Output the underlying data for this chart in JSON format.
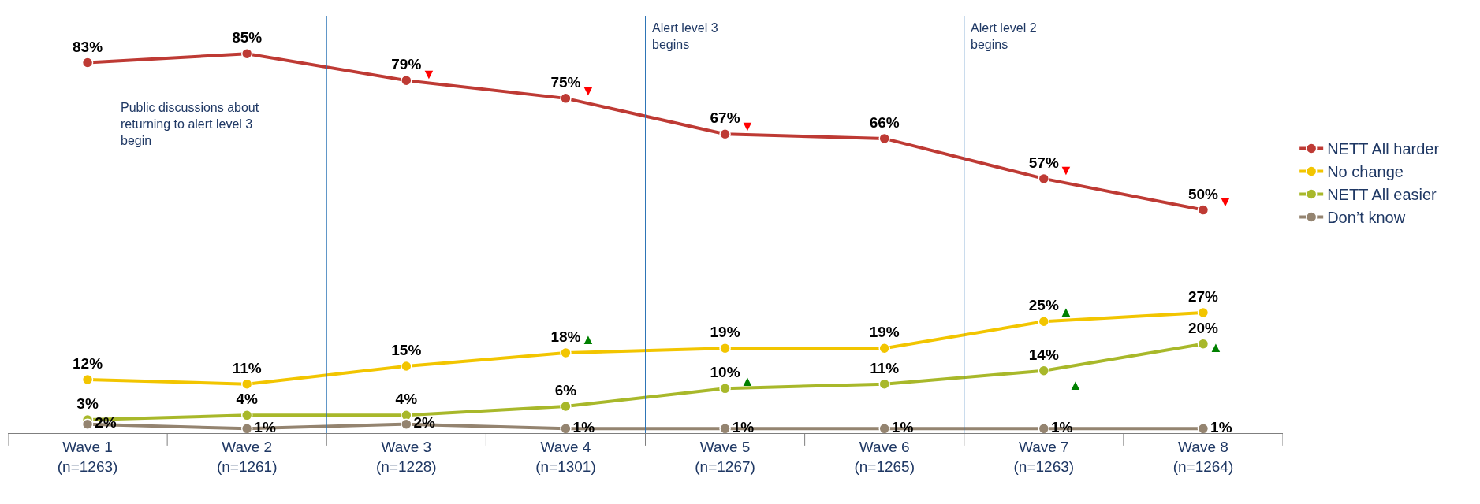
{
  "chart_data": {
    "type": "line",
    "categories": [
      "Wave 1\n(n=1263)",
      "Wave 2\n(n=1261)",
      "Wave 3\n(n=1228)",
      "Wave 4\n(n=1301)",
      "Wave 5\n(n=1267)",
      "Wave 6\n(n=1265)",
      "Wave 7\n(n=1263)",
      "Wave 8\n(n=1264)"
    ],
    "series": [
      {
        "name": "NETT All harder",
        "color": "#be3a34",
        "values": [
          83,
          85,
          79,
          75,
          67,
          66,
          57,
          50
        ],
        "value_labels": [
          "83%",
          "85%",
          "79%",
          "75%",
          "67%",
          "66%",
          "57%",
          "50%"
        ]
      },
      {
        "name": "No change",
        "color": "#f2c500",
        "values": [
          12,
          11,
          15,
          18,
          19,
          19,
          25,
          27
        ],
        "value_labels": [
          "12%",
          "11%",
          "15%",
          "18%",
          "19%",
          "19%",
          "25%",
          "27%"
        ]
      },
      {
        "name": "NETT All easier",
        "color": "#a8b82a",
        "values": [
          3,
          4,
          4,
          6,
          10,
          11,
          14,
          20
        ],
        "value_labels": [
          "3%",
          "4%",
          "4%",
          "6%",
          "10%",
          "11%",
          "14%",
          "20%"
        ]
      },
      {
        "name": "Don’t know",
        "color": "#948470",
        "values": [
          2,
          1,
          2,
          1,
          1,
          1,
          1,
          1
        ],
        "value_labels": [
          "2%",
          "1%",
          "2%",
          "1%",
          "1%",
          "1%",
          "1%",
          "1%"
        ]
      }
    ],
    "tick_labels": "x",
    "marker": "circle",
    "line_style": "solid",
    "legend": "right",
    "annotations": [
      "Public discussions about\nreturning to alert level 3\nbegin",
      "Alert level 3\nbegins",
      "Alert level 2\nbegins",
      "▼",
      "▼",
      "▼",
      "▼",
      "▼",
      "▲",
      "▲",
      "▲",
      "▲",
      "▲"
    ]
  }
}
